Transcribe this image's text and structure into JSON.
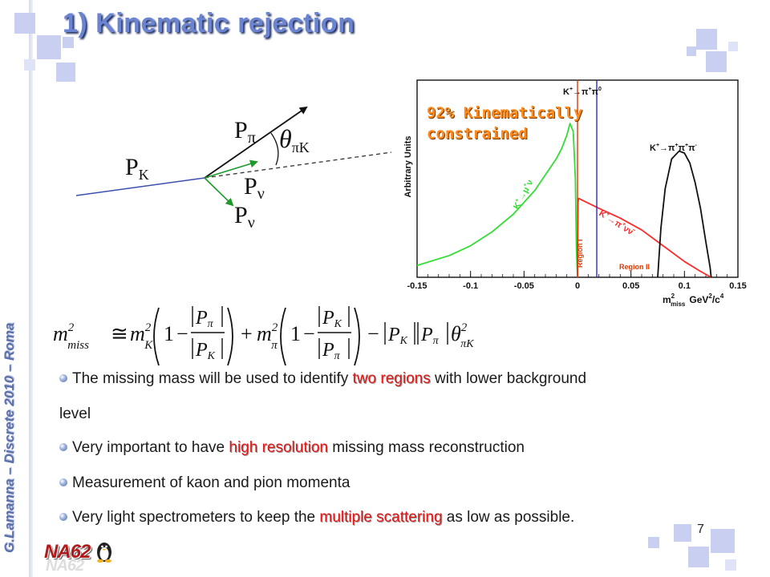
{
  "slide": {
    "title": "1) Kinematic rejection",
    "author_line": "G.Lamanna – Discrete 2010 – Roma",
    "page_number": "7",
    "logo_text": "NA62"
  },
  "diagram": {
    "labels": {
      "p_pi": "P",
      "p_pi_sub": "π",
      "theta": "θ",
      "theta_sub": "πK",
      "p_k": "P",
      "p_k_sub": "K",
      "p_nu1": "P",
      "p_nu1_sub": "ν",
      "p_nu2": "P",
      "p_nu2_sub": "ν"
    },
    "colors": {
      "kaon_line": "#3a4fb0",
      "neutrino_arrow": "#1e9a2a",
      "pion_arrow": "#111111"
    }
  },
  "formula": {
    "lhs": "m",
    "lhs_sup": "2",
    "lhs_sub": "miss",
    "approx": "≅",
    "mk": "m",
    "mk_sub": "K",
    "mk_sup": "2",
    "one": "1",
    "minus": "−",
    "plus": "+",
    "p_pi": "P",
    "p_pi_sub": "π",
    "p_k": "P",
    "p_k_sub": "K",
    "mpi": "m",
    "mpi_sub": "π",
    "mpi_sup": "2",
    "theta": "θ",
    "theta_sup": "2",
    "theta_sub": "πK"
  },
  "chart_data": {
    "type": "line",
    "ylabel": "Arbitrary Units",
    "xlabel": "m",
    "xlabel_sup": "2",
    "xlabel_sub": "miss",
    "xlabel_unit": "GeV",
    "xlabel_unit_sup": "2",
    "xlabel_unit_tail": "/c",
    "xlabel_unit_tail_sup": "4",
    "xlim": [
      -0.15,
      0.15
    ],
    "ylim": [
      0,
      1
    ],
    "x_ticks": [
      "-0.15",
      "-0.1",
      "-0.05",
      "0",
      "0.05",
      "0.1",
      "0.15"
    ],
    "annotation": {
      "line1": "92% Kinematically",
      "line2": "constrained",
      "color": "#ff8a1a"
    },
    "series": [
      {
        "name": "K+→μ+ν",
        "color": "#33dd33",
        "x": [
          -0.15,
          -0.12,
          -0.1,
          -0.08,
          -0.06,
          -0.04,
          -0.03,
          -0.02,
          -0.015,
          -0.01,
          -0.007,
          -0.004,
          -0.002,
          -0.001,
          0.0
        ],
        "y": [
          0.06,
          0.11,
          0.16,
          0.23,
          0.32,
          0.44,
          0.52,
          0.6,
          0.65,
          0.72,
          0.78,
          0.74,
          0.5,
          0.15,
          0.0
        ]
      },
      {
        "name": "K+→π+νν̄",
        "color": "#ff2a2a",
        "x": [
          0.0,
          0.0005,
          0.001,
          0.02,
          0.04,
          0.06,
          0.08,
          0.1,
          0.115,
          0.125
        ],
        "y": [
          0.0,
          0.38,
          0.4,
          0.35,
          0.3,
          0.24,
          0.16,
          0.08,
          0.03,
          0.0
        ]
      },
      {
        "name": "K+→π+π+π-",
        "color": "#111111",
        "x": [
          0.075,
          0.078,
          0.082,
          0.088,
          0.095,
          0.1,
          0.105,
          0.11,
          0.115,
          0.12,
          0.124,
          0.125
        ],
        "y": [
          0.0,
          0.25,
          0.45,
          0.6,
          0.64,
          0.63,
          0.58,
          0.48,
          0.35,
          0.18,
          0.05,
          0.0
        ]
      }
    ],
    "labels": {
      "kmunu": "K",
      "kmunu_sup": "+",
      "kmunu_tail": "→μ",
      "kmunu_tail_sup": "+",
      "kmunu_end": "ν",
      "kpinn": "K",
      "kpinn_sup": "+",
      "kpinn_tail": "→π",
      "kpinn_tail_sup": "+",
      "kpinn_end": "νν̄",
      "kpipi0": "K",
      "kpipi0_sup": "+",
      "kpipi0_tail": "→π",
      "kpipi0_tail_sup": "+",
      "kpipi0_pi": "π",
      "kpipi0_pi_sup": "0",
      "k3pi": "K",
      "k3pi_sup": "+",
      "k3pi_tail": "→π",
      "k3pi_tail_sup": "+",
      "k3pi_pi2": "π",
      "k3pi_pi2_sup": "+",
      "k3pi_pi3": "π",
      "k3pi_pi3_sup": "-",
      "region1": "Region I",
      "region2": "Region II"
    },
    "vlines": [
      {
        "x": 0.0,
        "color": "#e03a00"
      },
      {
        "x": 0.018,
        "color": "#2a2ad0"
      }
    ]
  },
  "bullets": [
    {
      "pre": "The missing mass will be used to identify ",
      "hl": "two regions",
      "post": " with lower background",
      "cont": "level"
    },
    {
      "pre": "Very important to have ",
      "hl": "high resolution",
      "post": " missing mass reconstruction"
    },
    {
      "pre": "Measurement of kaon and pion momenta",
      "hl": "",
      "post": ""
    },
    {
      "pre": "Very light spectrometers to keep the ",
      "hl": "multiple scattering",
      "post": " as low as possible."
    }
  ]
}
